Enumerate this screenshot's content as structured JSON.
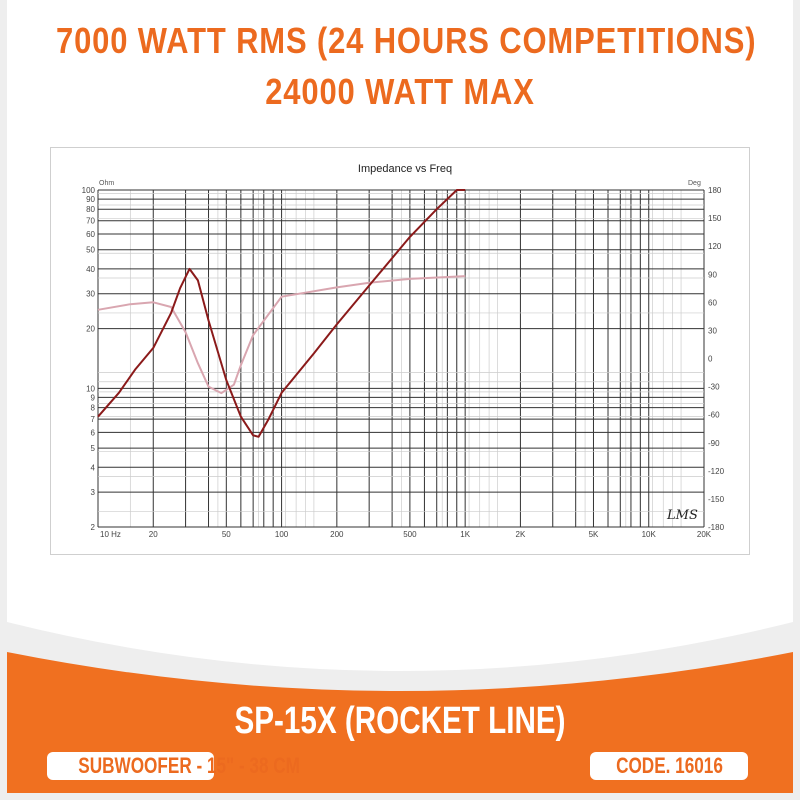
{
  "header": {
    "line1": "7000 WATT RMS (24 HOURS COMPETITIONS)",
    "line2": "24000 WATT MAX"
  },
  "footer": {
    "model": "SP-15X (ROCKET LINE)",
    "type": "SUBWOOFER - 15\" - 38 CM",
    "code": "CODE. 16016"
  },
  "colors": {
    "brand_orange": "#ec6a1f",
    "impedance": "#8b1a1a",
    "phase": "#d9a6b0"
  },
  "chart_data": {
    "type": "line",
    "title": "Impedance vs Freq",
    "xscale": "log",
    "yscale": "log",
    "xlim": [
      10,
      20000
    ],
    "ylim": [
      2,
      100
    ],
    "y2lim": [
      -180,
      180
    ],
    "ylabel": "Ohm",
    "y2label": "Deg",
    "x_ticks": [
      "10 Hz",
      "20",
      "50",
      "100",
      "200",
      "500",
      "1K",
      "2K",
      "5K",
      "10K",
      "20K"
    ],
    "x_tick_values": [
      10,
      20,
      50,
      100,
      200,
      500,
      1000,
      2000,
      5000,
      10000,
      20000
    ],
    "y_ticks": [
      2,
      3,
      4,
      5,
      6,
      7,
      8,
      9,
      10,
      20,
      30,
      40,
      50,
      60,
      70,
      80,
      90,
      100
    ],
    "y2_ticks": [
      180,
      150,
      120,
      90,
      60,
      30,
      0,
      -30,
      -60,
      -90,
      -120,
      -150,
      -180
    ],
    "grid": true,
    "watermark": "LMS",
    "series": [
      {
        "axis": "left",
        "x": [
          10,
          13,
          16,
          20,
          25,
          28,
          31.5,
          35,
          40,
          50,
          60,
          70,
          75,
          85,
          100,
          150,
          200,
          300,
          500,
          700,
          900,
          1000
        ],
        "y": [
          7.2,
          9.5,
          12.5,
          16,
          24,
          32,
          40,
          35,
          22,
          11,
          7.2,
          5.8,
          5.7,
          7,
          9.5,
          15,
          21,
          33,
          58,
          80,
          100,
          100
        ]
      },
      {
        "axis": "right",
        "x": [
          10,
          15,
          20,
          25,
          30,
          35,
          40,
          47,
          55,
          60,
          70,
          100,
          200,
          300,
          500,
          1000
        ],
        "y": [
          52,
          58,
          60,
          55,
          28,
          -5,
          -30,
          -37,
          -28,
          -7,
          25,
          66,
          76,
          81,
          85,
          88
        ]
      }
    ]
  }
}
